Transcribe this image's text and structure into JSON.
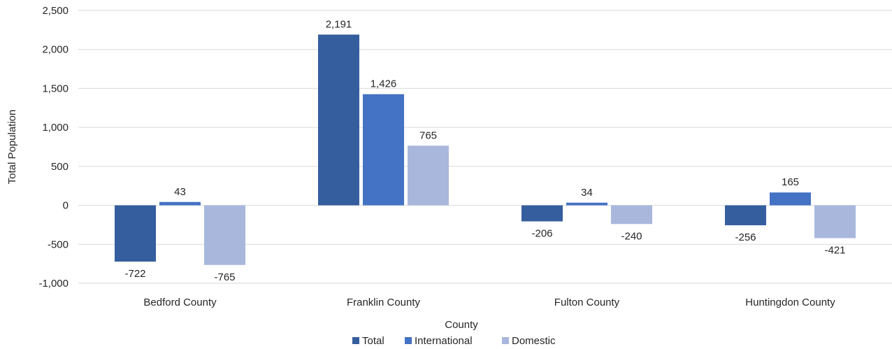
{
  "chart_data": {
    "type": "bar",
    "title": "",
    "xlabel": "County",
    "ylabel": "Total Population",
    "ylim": [
      -1000,
      2500
    ],
    "yticks": [
      2500,
      2000,
      1500,
      1000,
      500,
      0,
      -500,
      -1000
    ],
    "ytick_labels": [
      "2,500",
      "2,000",
      "1,500",
      "1,000",
      "500",
      "0",
      "-500",
      "-1,000"
    ],
    "grid": true,
    "legend_position": "bottom",
    "categories": [
      "Bedford County",
      "Franklin County",
      "Fulton County",
      "Huntingdon County"
    ],
    "series": [
      {
        "name": "Total",
        "color": "#355E9E",
        "values": [
          -722,
          2191,
          -206,
          -256
        ],
        "labels": [
          "-722",
          "2,191",
          "-206",
          "-256"
        ]
      },
      {
        "name": "International",
        "color": "#4472C4",
        "values": [
          43,
          1426,
          34,
          165
        ],
        "labels": [
          "43",
          "1,426",
          "34",
          "165"
        ]
      },
      {
        "name": "Domestic",
        "color": "#A9B7DD",
        "values": [
          -765,
          765,
          -240,
          -421
        ],
        "labels": [
          "-765",
          "765",
          "-240",
          "-421"
        ]
      }
    ]
  }
}
